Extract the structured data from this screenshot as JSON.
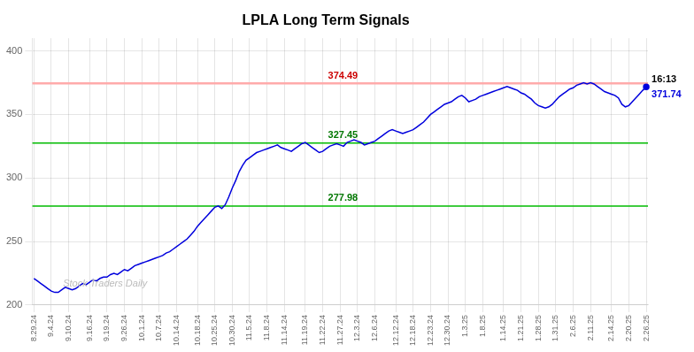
{
  "chart_data": {
    "type": "line",
    "title": "LPLA Long Term Signals",
    "categories": [
      "8.29.24",
      null,
      null,
      null,
      null,
      "9.4.24",
      null,
      null,
      null,
      null,
      "9.10.24",
      null,
      null,
      null,
      null,
      null,
      "9.16.24",
      null,
      null,
      null,
      null,
      "9.19.24",
      null,
      null,
      null,
      null,
      "9.26.24",
      null,
      null,
      null,
      null,
      "10.1.24",
      null,
      null,
      null,
      null,
      "10.7.24",
      null,
      null,
      null,
      null,
      "10.14.24",
      null,
      null,
      null,
      null,
      null,
      "10.18.24",
      null,
      null,
      null,
      null,
      "10.25.24",
      null,
      null,
      null,
      null,
      "10.30.24",
      null,
      null,
      null,
      null,
      "11.5.24",
      null,
      null,
      null,
      null,
      "11.8.24",
      null,
      null,
      null,
      null,
      "11.14.24",
      null,
      null,
      null,
      null,
      null,
      "11.19.24",
      null,
      null,
      null,
      null,
      "11.22.24",
      null,
      null,
      null,
      null,
      "11.27.24",
      null,
      null,
      null,
      null,
      "12.3.24",
      null,
      null,
      null,
      null,
      "12.6.24",
      null,
      null,
      null,
      null,
      null,
      "12.12.24",
      null,
      null,
      null,
      null,
      "12.18.24",
      null,
      null,
      null,
      null,
      "12.23.24",
      null,
      null,
      null,
      null,
      "12.30.24",
      null,
      null,
      null,
      null,
      "1.3.25",
      null,
      null,
      null,
      null,
      "1.8.25",
      null,
      null,
      null,
      null,
      null,
      "1.14.25",
      null,
      null,
      null,
      null,
      "1.21.25",
      null,
      null,
      null,
      null,
      "1.28.25",
      null,
      null,
      null,
      null,
      "1.31.25",
      null,
      null,
      null,
      null,
      "2.6.25",
      null,
      null,
      null,
      null,
      "2.11.25",
      null,
      null,
      null,
      null,
      null,
      "2.14.25",
      null,
      null,
      null,
      null,
      "2.20.25",
      null,
      null,
      null,
      null,
      "2.26.25"
    ],
    "values": [
      221,
      219,
      217,
      215,
      213,
      211,
      210,
      210,
      212,
      214,
      213,
      212,
      213,
      215,
      217,
      216,
      218,
      220,
      219,
      221,
      222,
      222,
      224,
      225,
      224,
      226,
      228,
      227,
      229,
      231,
      232,
      233,
      234,
      235,
      236,
      237,
      238,
      239,
      241,
      242,
      244,
      246,
      248,
      250,
      252,
      255,
      258,
      262,
      265,
      268,
      271,
      274,
      277,
      278,
      276,
      279,
      285,
      292,
      298,
      305,
      310,
      314,
      316,
      318,
      320,
      321,
      322,
      323,
      324,
      325,
      326,
      324,
      323,
      322,
      321,
      323,
      325,
      327,
      328,
      326,
      324,
      322,
      320,
      321,
      323,
      325,
      326,
      327,
      326,
      325,
      328,
      329,
      330,
      329,
      328,
      326,
      327,
      328,
      329,
      331,
      333,
      335,
      337,
      338,
      337,
      336,
      335,
      336,
      337,
      338,
      340,
      342,
      344,
      347,
      350,
      352,
      354,
      356,
      358,
      359,
      360,
      362,
      364,
      365,
      363,
      360,
      361,
      362,
      364,
      365,
      366,
      367,
      368,
      369,
      370,
      371,
      372,
      371,
      370,
      369,
      367,
      366,
      364,
      362,
      359,
      357,
      356,
      355,
      356,
      358,
      361,
      364,
      366,
      368,
      370,
      371,
      373,
      374,
      375,
      374,
      375,
      374,
      372,
      370,
      368,
      367,
      366,
      365,
      363,
      358,
      356,
      357,
      360,
      363,
      366,
      369,
      371.74
    ],
    "color": "#0000dd",
    "hlines": [
      {
        "y": 374.49,
        "color": "#ffaaaa"
      },
      {
        "y": 327.45,
        "color": "#00bb00"
      },
      {
        "y": 277.98,
        "color": "#00bb00"
      }
    ],
    "annotations": [
      {
        "text": "374.49",
        "x": "11.22.24",
        "y": 374.49,
        "color": "#cc0000",
        "position": "above"
      },
      {
        "text": "327.45",
        "x": "11.22.24",
        "y": 327.45,
        "color": "#007700",
        "position": "above"
      },
      {
        "text": "277.98",
        "x": "11.22.24",
        "y": 277.98,
        "color": "#007700",
        "position": "above"
      },
      {
        "text": "16:13",
        "x": "2.26.25",
        "y": 371.74,
        "color": "#000000",
        "position": "above"
      },
      {
        "text": "371.74",
        "x": "2.26.25",
        "y": 371.74,
        "color": "#0000dd",
        "position": "below"
      }
    ],
    "watermark": "Stock Traders Daily",
    "ylim": [
      200,
      410
    ],
    "yticks": [
      200,
      250,
      300,
      350,
      400
    ],
    "grid": true
  }
}
